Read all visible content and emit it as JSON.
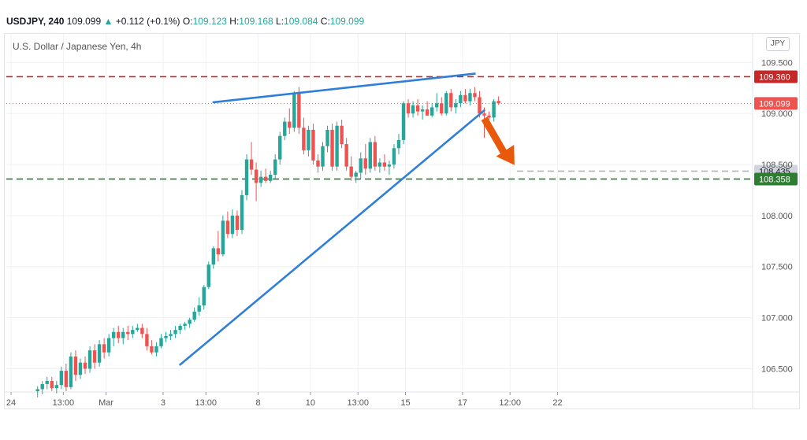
{
  "header": {
    "symbol": "USDJPY",
    "interval": "240",
    "last": "109.099",
    "change": "+0.112 (+0.1%)",
    "open_label": "O:",
    "open": "109.123",
    "high_label": "H:",
    "high": "109.168",
    "low_label": "L:",
    "low": "109.084",
    "close_label": "C:",
    "close": "109.099",
    "up_arrow": "▲"
  },
  "pane_title": "U.S. Dollar / Japanese Yen, 4h",
  "currency_button": "JPY",
  "colors": {
    "up": "#26a69a",
    "down": "#ef5350",
    "trendline": "#2f7ed8",
    "resistance": "#c62828",
    "support": "#2e7d32",
    "last_price": "#ef5350",
    "target": "#b2b5be",
    "arrow": "#e8590c",
    "grid": "#eef0f3"
  },
  "chart_data": {
    "type": "candlestick",
    "x_tick_labels": [
      "24",
      "13:00",
      "Mar",
      "3",
      "13:00",
      "8",
      "10",
      "13:00",
      "15",
      "17",
      "12:00",
      "22"
    ],
    "y_tick_labels": [
      "109.500",
      "109.000",
      "108.500",
      "108.000",
      "107.500",
      "107.000",
      "106.500"
    ],
    "y_ticks": [
      109.5,
      109.0,
      108.5,
      108.0,
      107.5,
      107.0,
      106.5
    ],
    "ylim": [
      106.28,
      109.78
    ],
    "x_count": 114,
    "x_ticks_index": [
      1,
      12,
      21,
      33,
      42,
      53,
      64,
      74,
      84,
      96,
      106,
      116
    ],
    "levels": [
      {
        "name": "resistance",
        "value": 109.36,
        "label": "109.360",
        "style": "dashed"
      },
      {
        "name": "last-price",
        "value": 109.099,
        "label": "109.099",
        "style": "dotted"
      },
      {
        "name": "target",
        "value": 108.435,
        "label": "108.435",
        "style": "dashed"
      },
      {
        "name": "support",
        "value": 108.358,
        "label": "108.358",
        "style": "dashed"
      }
    ],
    "trendlines": [
      {
        "name": "upper-trendline",
        "from": [
          37,
          109.11
        ],
        "to": [
          92,
          109.39
        ]
      },
      {
        "name": "lower-trendline",
        "from": [
          30,
          106.54
        ],
        "to": [
          94,
          109.03
        ]
      }
    ],
    "candles": [
      [
        106.28,
        106.33,
        106.22,
        106.3
      ],
      [
        106.3,
        106.38,
        106.25,
        106.35
      ],
      [
        106.35,
        106.42,
        106.3,
        106.38
      ],
      [
        106.38,
        106.42,
        106.28,
        106.31
      ],
      [
        106.31,
        106.38,
        106.26,
        106.34
      ],
      [
        106.34,
        106.52,
        106.3,
        106.48
      ],
      [
        106.48,
        106.55,
        106.28,
        106.32
      ],
      [
        106.32,
        106.66,
        106.3,
        106.62
      ],
      [
        106.62,
        106.68,
        106.38,
        106.44
      ],
      [
        106.44,
        106.6,
        106.4,
        106.56
      ],
      [
        106.56,
        106.62,
        106.45,
        106.5
      ],
      [
        106.5,
        106.72,
        106.46,
        106.68
      ],
      [
        106.68,
        106.74,
        106.5,
        106.56
      ],
      [
        106.56,
        106.78,
        106.52,
        106.74
      ],
      [
        106.74,
        106.8,
        106.6,
        106.66
      ],
      [
        106.66,
        106.84,
        106.62,
        106.8
      ],
      [
        106.8,
        106.9,
        106.72,
        106.86
      ],
      [
        106.86,
        106.92,
        106.75,
        106.8
      ],
      [
        106.8,
        106.9,
        106.74,
        106.86
      ],
      [
        106.86,
        106.92,
        106.78,
        106.84
      ],
      [
        106.84,
        106.92,
        106.8,
        106.88
      ],
      [
        106.88,
        106.94,
        106.86,
        106.9
      ],
      [
        106.9,
        106.94,
        106.8,
        106.84
      ],
      [
        106.84,
        106.9,
        106.68,
        106.72
      ],
      [
        106.72,
        106.78,
        106.64,
        106.66
      ],
      [
        106.66,
        106.76,
        106.62,
        106.72
      ],
      [
        106.72,
        106.84,
        106.7,
        106.8
      ],
      [
        106.8,
        106.86,
        106.76,
        106.82
      ],
      [
        106.82,
        106.88,
        106.78,
        106.84
      ],
      [
        106.84,
        106.92,
        106.8,
        106.88
      ],
      [
        106.88,
        106.94,
        106.84,
        106.92
      ],
      [
        106.92,
        106.96,
        106.88,
        106.94
      ],
      [
        106.94,
        107.0,
        106.9,
        106.98
      ],
      [
        106.98,
        107.1,
        106.96,
        107.06
      ],
      [
        107.06,
        107.2,
        107.02,
        107.12
      ],
      [
        107.12,
        107.32,
        107.08,
        107.3
      ],
      [
        107.3,
        107.55,
        107.28,
        107.52
      ],
      [
        107.52,
        107.7,
        107.48,
        107.68
      ],
      [
        107.68,
        107.85,
        107.55,
        107.62
      ],
      [
        107.62,
        108.0,
        107.6,
        107.95
      ],
      [
        107.95,
        108.04,
        107.78,
        107.82
      ],
      [
        107.82,
        108.06,
        107.78,
        108.0
      ],
      [
        108.0,
        108.05,
        107.8,
        107.86
      ],
      [
        107.86,
        108.25,
        107.82,
        108.2
      ],
      [
        108.2,
        108.6,
        108.15,
        108.55
      ],
      [
        108.55,
        108.72,
        108.4,
        108.45
      ],
      [
        108.45,
        108.52,
        108.14,
        108.32
      ],
      [
        108.32,
        108.44,
        108.28,
        108.38
      ],
      [
        108.38,
        108.46,
        108.32,
        108.34
      ],
      [
        108.34,
        108.44,
        108.32,
        108.4
      ],
      [
        108.4,
        108.6,
        108.36,
        108.55
      ],
      [
        108.55,
        108.82,
        108.5,
        108.78
      ],
      [
        108.78,
        108.96,
        108.74,
        108.92
      ],
      [
        108.92,
        109.05,
        108.8,
        108.86
      ],
      [
        108.86,
        109.22,
        108.82,
        109.2
      ],
      [
        109.2,
        109.26,
        108.8,
        108.86
      ],
      [
        108.86,
        108.96,
        108.6,
        108.64
      ],
      [
        108.64,
        108.88,
        108.58,
        108.84
      ],
      [
        108.84,
        108.9,
        108.5,
        108.54
      ],
      [
        108.54,
        108.6,
        108.42,
        108.48
      ],
      [
        108.48,
        108.72,
        108.44,
        108.68
      ],
      [
        108.68,
        108.88,
        108.62,
        108.84
      ],
      [
        108.84,
        108.9,
        108.44,
        108.48
      ],
      [
        108.48,
        108.92,
        108.44,
        108.88
      ],
      [
        108.88,
        108.94,
        108.66,
        108.7
      ],
      [
        108.7,
        108.76,
        108.44,
        108.48
      ],
      [
        108.48,
        108.58,
        108.34,
        108.38
      ],
      [
        108.38,
        108.44,
        108.32,
        108.42
      ],
      [
        108.42,
        108.62,
        108.36,
        108.56
      ],
      [
        108.56,
        108.7,
        108.4,
        108.46
      ],
      [
        108.46,
        108.76,
        108.42,
        108.72
      ],
      [
        108.72,
        108.78,
        108.44,
        108.48
      ],
      [
        108.48,
        108.56,
        108.42,
        108.52
      ],
      [
        108.52,
        108.6,
        108.44,
        108.48
      ],
      [
        108.48,
        108.54,
        108.4,
        108.5
      ],
      [
        108.5,
        108.7,
        108.46,
        108.66
      ],
      [
        108.66,
        108.8,
        108.6,
        108.74
      ],
      [
        108.74,
        109.12,
        108.7,
        109.1
      ],
      [
        109.1,
        109.14,
        108.96,
        109.0
      ],
      [
        109.0,
        109.12,
        108.96,
        109.08
      ],
      [
        109.08,
        109.14,
        108.98,
        109.02
      ],
      [
        109.02,
        109.08,
        108.94,
        109.04
      ],
      [
        109.04,
        109.12,
        108.98,
        108.98
      ],
      [
        108.98,
        109.1,
        108.96,
        109.06
      ],
      [
        109.06,
        109.2,
        109.02,
        109.1
      ],
      [
        109.1,
        109.16,
        108.98,
        109.0
      ],
      [
        109.0,
        109.22,
        108.98,
        109.2
      ],
      [
        109.2,
        109.24,
        109.02,
        109.06
      ],
      [
        109.06,
        109.14,
        109.0,
        109.1
      ],
      [
        109.1,
        109.22,
        109.06,
        109.18
      ],
      [
        109.18,
        109.24,
        109.1,
        109.12
      ],
      [
        109.12,
        109.24,
        109.08,
        109.2
      ],
      [
        109.2,
        109.26,
        109.12,
        109.16
      ],
      [
        109.16,
        109.22,
        108.96,
        109.0
      ],
      [
        109.0,
        109.06,
        108.76,
        108.98
      ],
      [
        108.98,
        109.02,
        108.94,
        108.96
      ],
      [
        108.96,
        109.14,
        108.92,
        109.12
      ],
      [
        109.123,
        109.168,
        109.084,
        109.099
      ]
    ]
  }
}
